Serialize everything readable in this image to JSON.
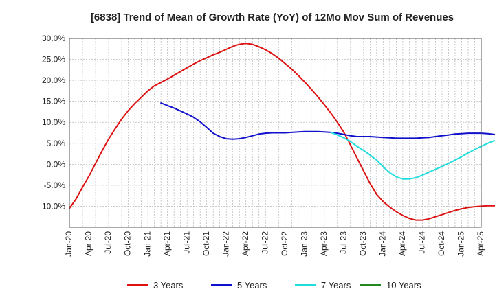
{
  "chart_data": {
    "type": "line",
    "title": "[6838]  Trend of Mean of Growth Rate (YoY) of 12Mo Mov Sum of Revenues",
    "xlabel": "",
    "ylabel": "",
    "ylim": [
      -15,
      30
    ],
    "grid": true,
    "legend_position": "bottom",
    "y_ticks": [
      "30.0%",
      "25.0%",
      "20.0%",
      "15.0%",
      "10.0%",
      "5.0%",
      "0.0%",
      "-5.0%",
      "-10.0%"
    ],
    "x_ticks": [
      "Jan-20",
      "Apr-20",
      "Jul-20",
      "Oct-20",
      "Jan-21",
      "Apr-21",
      "Jul-21",
      "Oct-21",
      "Jan-22",
      "Apr-22",
      "Jul-22",
      "Oct-22",
      "Jan-23",
      "Apr-23",
      "Jul-23",
      "Oct-23",
      "Jan-24",
      "Apr-24",
      "Jul-24",
      "Oct-24",
      "Jan-25",
      "Apr-25"
    ],
    "series": [
      {
        "name": "3 Years",
        "color": "#dd1111",
        "points": [
          [
            0,
            -10.5
          ],
          [
            1,
            -8.3
          ],
          [
            2,
            -5.5
          ],
          [
            3,
            -2.8
          ],
          [
            4,
            0.2
          ],
          [
            5,
            3.2
          ],
          [
            6,
            6.0
          ],
          [
            7,
            8.5
          ],
          [
            8,
            10.8
          ],
          [
            9,
            12.8
          ],
          [
            10,
            14.5
          ],
          [
            11,
            16.0
          ],
          [
            12,
            17.5
          ],
          [
            13,
            18.7
          ],
          [
            14,
            19.5
          ],
          [
            15,
            20.3
          ],
          [
            16,
            21.2
          ],
          [
            17,
            22.1
          ],
          [
            18,
            23.0
          ],
          [
            19,
            23.9
          ],
          [
            20,
            24.7
          ],
          [
            21,
            25.4
          ],
          [
            22,
            26.1
          ],
          [
            23,
            26.7
          ],
          [
            24,
            27.4
          ],
          [
            25,
            28.1
          ],
          [
            26,
            28.6
          ],
          [
            27,
            28.8
          ],
          [
            28,
            28.6
          ],
          [
            29,
            28.0
          ],
          [
            30,
            27.3
          ],
          [
            31,
            26.4
          ],
          [
            32,
            25.3
          ],
          [
            33,
            24.0
          ],
          [
            34,
            22.7
          ],
          [
            35,
            21.2
          ],
          [
            36,
            19.6
          ],
          [
            37,
            17.9
          ],
          [
            38,
            16.1
          ],
          [
            39,
            14.2
          ],
          [
            40,
            12.2
          ],
          [
            41,
            10.0
          ],
          [
            42,
            7.6
          ],
          [
            43,
            4.6
          ],
          [
            44,
            1.5
          ],
          [
            45,
            -1.6
          ],
          [
            46,
            -4.6
          ],
          [
            47,
            -7.2
          ],
          [
            48,
            -8.9
          ],
          [
            49,
            -10.2
          ],
          [
            50,
            -11.3
          ],
          [
            51,
            -12.2
          ],
          [
            52,
            -12.9
          ],
          [
            53,
            -13.3
          ],
          [
            54,
            -13.3
          ],
          [
            55,
            -13.0
          ],
          [
            56,
            -12.5
          ],
          [
            57,
            -12.0
          ],
          [
            58,
            -11.5
          ],
          [
            59,
            -11.0
          ],
          [
            60,
            -10.6
          ],
          [
            61,
            -10.3
          ],
          [
            62,
            -10.1
          ],
          [
            63,
            -10.0
          ],
          [
            64,
            -9.9
          ],
          [
            65,
            -9.9
          ],
          [
            66,
            -9.8
          ]
        ]
      },
      {
        "name": "5 Years",
        "color": "#1111cc",
        "points": [
          [
            14,
            14.6
          ],
          [
            15,
            14.0
          ],
          [
            16,
            13.4
          ],
          [
            17,
            12.7
          ],
          [
            18,
            12.0
          ],
          [
            19,
            11.2
          ],
          [
            20,
            10.1
          ],
          [
            21,
            8.8
          ],
          [
            22,
            7.4
          ],
          [
            23,
            6.6
          ],
          [
            24,
            6.1
          ],
          [
            25,
            6.0
          ],
          [
            26,
            6.1
          ],
          [
            27,
            6.4
          ],
          [
            28,
            6.8
          ],
          [
            29,
            7.2
          ],
          [
            30,
            7.4
          ],
          [
            31,
            7.5
          ],
          [
            32,
            7.5
          ],
          [
            33,
            7.5
          ],
          [
            34,
            7.6
          ],
          [
            35,
            7.7
          ],
          [
            36,
            7.8
          ],
          [
            37,
            7.8
          ],
          [
            38,
            7.8
          ],
          [
            39,
            7.7
          ],
          [
            40,
            7.6
          ],
          [
            41,
            7.4
          ],
          [
            42,
            7.1
          ],
          [
            43,
            6.8
          ],
          [
            44,
            6.6
          ],
          [
            45,
            6.6
          ],
          [
            46,
            6.6
          ],
          [
            47,
            6.5
          ],
          [
            48,
            6.4
          ],
          [
            49,
            6.3
          ],
          [
            50,
            6.2
          ],
          [
            51,
            6.2
          ],
          [
            52,
            6.2
          ],
          [
            53,
            6.2
          ],
          [
            54,
            6.3
          ],
          [
            55,
            6.4
          ],
          [
            56,
            6.6
          ],
          [
            57,
            6.8
          ],
          [
            58,
            7.0
          ],
          [
            59,
            7.2
          ],
          [
            60,
            7.3
          ],
          [
            61,
            7.4
          ],
          [
            62,
            7.4
          ],
          [
            63,
            7.4
          ],
          [
            64,
            7.3
          ],
          [
            65,
            7.1
          ],
          [
            66,
            6.7
          ]
        ]
      },
      {
        "name": "7 Years",
        "color": "#22dddd",
        "points": [
          [
            40,
            7.6
          ],
          [
            41,
            7.0
          ],
          [
            42,
            6.3
          ],
          [
            43,
            5.4
          ],
          [
            44,
            4.3
          ],
          [
            45,
            3.3
          ],
          [
            46,
            2.2
          ],
          [
            47,
            1.0
          ],
          [
            48,
            -0.6
          ],
          [
            49,
            -2.0
          ],
          [
            50,
            -3.0
          ],
          [
            51,
            -3.5
          ],
          [
            52,
            -3.5
          ],
          [
            53,
            -3.2
          ],
          [
            54,
            -2.6
          ],
          [
            55,
            -1.9
          ],
          [
            56,
            -1.2
          ],
          [
            57,
            -0.5
          ],
          [
            58,
            0.2
          ],
          [
            59,
            1.0
          ],
          [
            60,
            1.8
          ],
          [
            61,
            2.7
          ],
          [
            62,
            3.5
          ],
          [
            63,
            4.3
          ],
          [
            64,
            5.0
          ],
          [
            65,
            5.6
          ],
          [
            66,
            6.1
          ]
        ]
      },
      {
        "name": "10 Years",
        "color": "#228822",
        "points": []
      }
    ]
  }
}
